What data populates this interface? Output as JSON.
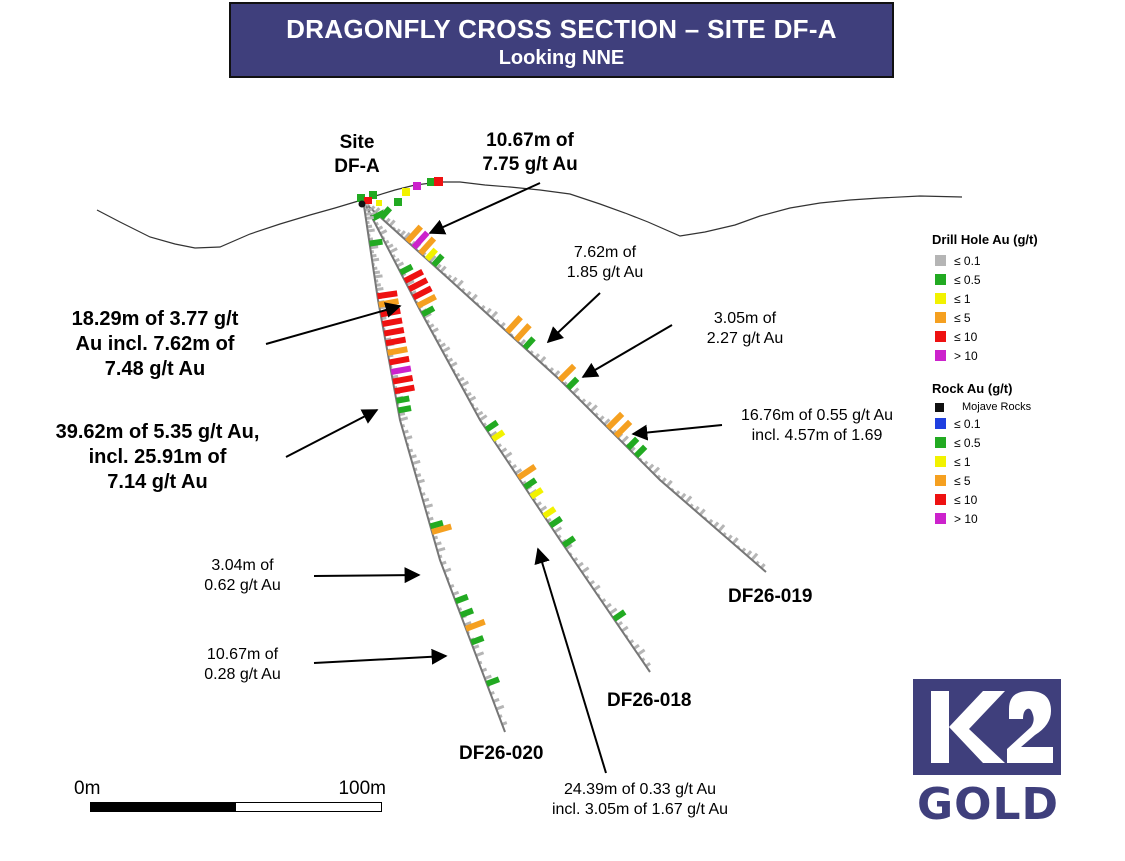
{
  "title": {
    "main": "DRAGONFLY CROSS SECTION – SITE DF-A",
    "sub": "Looking NNE",
    "bg_color": "#3f3f7c"
  },
  "site_label": [
    "Site",
    "DF-A"
  ],
  "holes": [
    {
      "name": "DF26-019"
    },
    {
      "name": "DF26-018"
    },
    {
      "name": "DF26-020"
    }
  ],
  "intercepts": [
    {
      "lines": [
        "10.67m of",
        "7.75 g/t Au"
      ],
      "style": "bold"
    },
    {
      "lines": [
        "7.62m of",
        "1.85 g/t Au"
      ],
      "style": "regular"
    },
    {
      "lines": [
        "3.05m of",
        "2.27 g/t Au"
      ],
      "style": "regular"
    },
    {
      "lines": [
        "16.76m of 0.55 g/t Au",
        "incl. 4.57m of 1.69"
      ],
      "style": "regular"
    },
    {
      "lines": [
        "18.29m of 3.77 g/t",
        "Au incl. 7.62m of",
        "7.48 g/t Au"
      ],
      "style": "bold"
    },
    {
      "lines": [
        "39.62m of 5.35 g/t Au,",
        "incl. 25.91m of",
        "7.14 g/t Au"
      ],
      "style": "bold"
    },
    {
      "lines": [
        "3.04m of",
        "0.62 g/t Au"
      ],
      "style": "regular"
    },
    {
      "lines": [
        "10.67m of",
        "0.28 g/t Au"
      ],
      "style": "regular"
    },
    {
      "lines": [
        "24.39m of 0.33 g/t Au",
        "incl. 3.05m of 1.67 g/t Au"
      ],
      "style": "regular"
    }
  ],
  "legend": {
    "drill_title": "Drill Hole Au (g/t)",
    "drill_items": [
      {
        "label": "≤ 0.1",
        "color": "#b5b5b5"
      },
      {
        "label": "≤ 0.5",
        "color": "#22aa22"
      },
      {
        "label": "≤ 1",
        "color": "#f2f200"
      },
      {
        "label": "≤ 5",
        "color": "#f5a020"
      },
      {
        "label": "≤ 10",
        "color": "#ee1111"
      },
      {
        "label": "> 10",
        "color": "#cc22cc"
      }
    ],
    "rock_title": "Rock Au (g/t)",
    "rock_special": {
      "label": "Mojave Rocks",
      "color": "#111111"
    },
    "rock_items": [
      {
        "label": "≤ 0.1",
        "color": "#1f3fe0"
      },
      {
        "label": "≤ 0.5",
        "color": "#22aa22"
      },
      {
        "label": "≤ 1",
        "color": "#f2f200"
      },
      {
        "label": "≤ 5",
        "color": "#f5a020"
      },
      {
        "label": "≤ 10",
        "color": "#ee1111"
      },
      {
        "label": "> 10",
        "color": "#cc22cc"
      }
    ]
  },
  "scale_bar": {
    "start": "0m",
    "end": "100m"
  },
  "logo": {
    "mark": "K2",
    "word": "GOLD",
    "color": "#3f3f7c"
  }
}
